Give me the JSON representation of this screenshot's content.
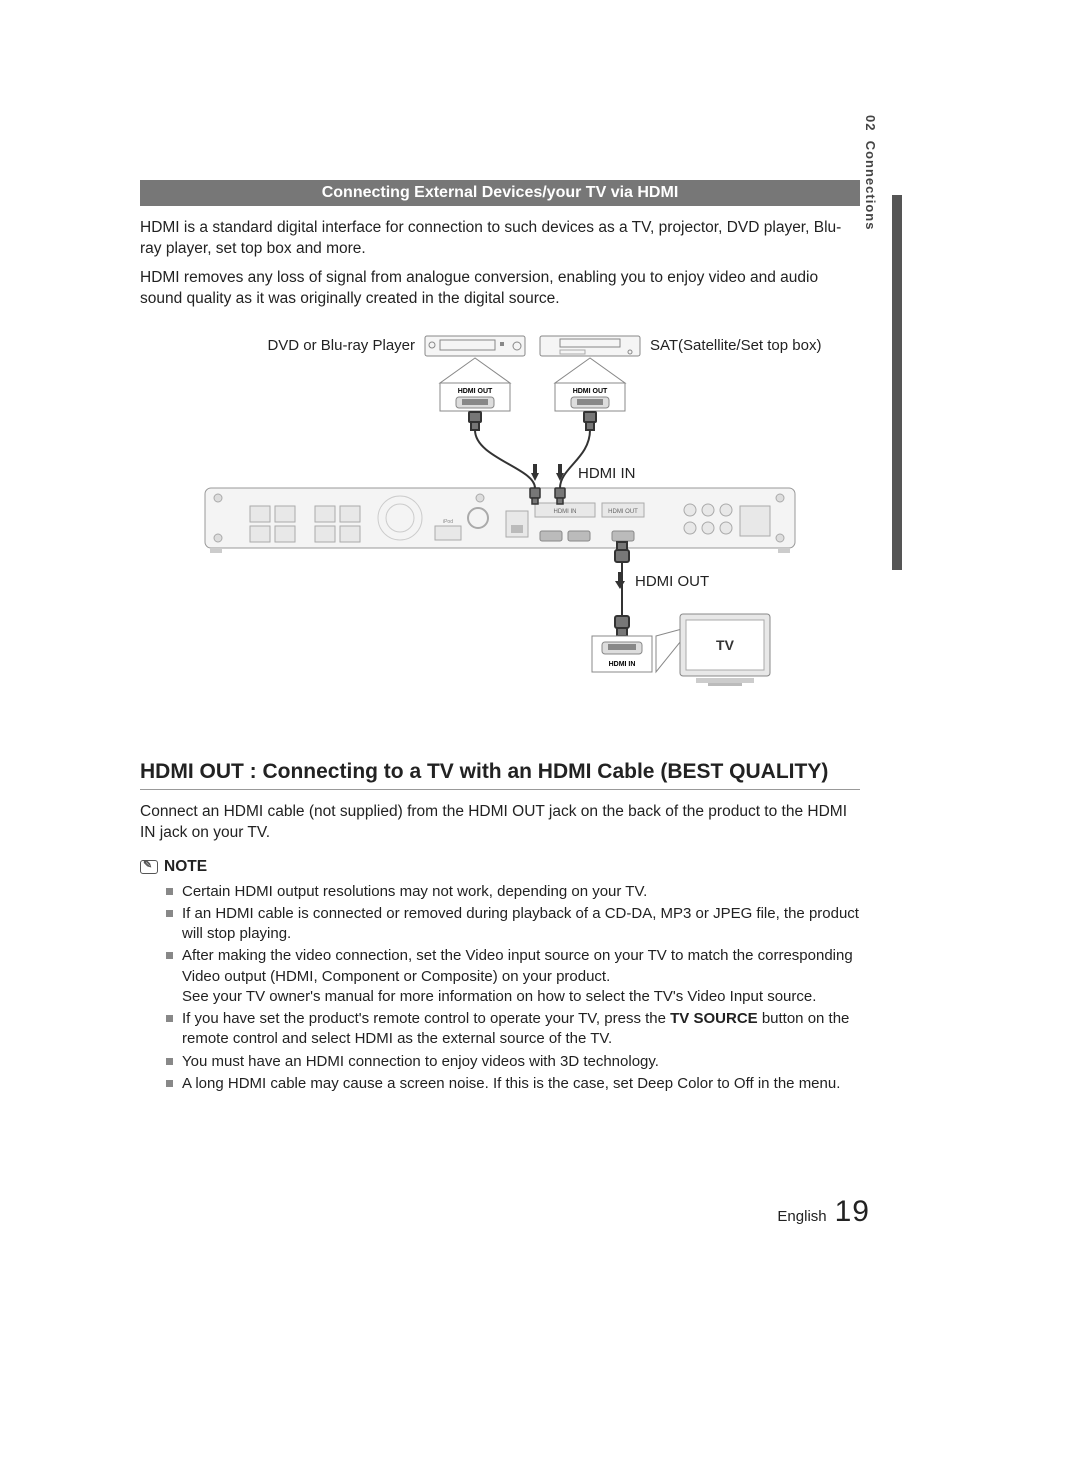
{
  "sidebar": {
    "chapter": "02",
    "title": "Connections"
  },
  "section": {
    "bar_title": "Connecting External Devices/your TV via HDMI"
  },
  "intro": {
    "p1": "HDMI is a standard digital interface for connection to such devices as a TV, projector, DVD player, Blu-ray player, set top box and more.",
    "p2": "HDMI removes any loss of signal from analogue conversion, enabling you to enjoy video and audio sound quality as it was originally created in the digital source."
  },
  "diagram": {
    "dvd_label": "DVD or Blu-ray Player",
    "sat_label": "SAT(Satellite/Set top box)",
    "hdmi_out_small": "HDMI OUT",
    "hdmi_in": "HDMI IN",
    "hdmi_out": "HDMI OUT",
    "hdmi_in_small": "HDMI  IN",
    "tv_label": "TV",
    "colors": {
      "stroke": "#888888",
      "fill_light": "#f0f0f0",
      "text": "#222222",
      "arrow": "#333333"
    }
  },
  "subsection": {
    "title": "HDMI OUT : Connecting to a TV with an HDMI Cable (BEST QUALITY)",
    "body": "Connect an HDMI cable (not supplied) from the HDMI OUT jack on the back of the product to the HDMI IN jack on your TV."
  },
  "note": {
    "heading": "NOTE",
    "items": [
      "Certain HDMI output resolutions may not work, depending on your TV.",
      "If an HDMI cable is connected or removed during playback of a CD-DA, MP3 or JPEG file, the product will stop playing.",
      "After making the video connection, set the Video input source on your TV to match the corresponding Video output (HDMI, Component or Composite) on your product.\nSee your TV owner's manual for more information on how to select the TV's Video Input source.",
      "If you have set the product's remote control to operate your TV, press the TV SOURCE button on the remote control and select HDMI as the external source of the TV.",
      "You must have an HDMI connection to enjoy videos with 3D technology.",
      "A long HDMI cable may cause a screen noise. If this is the case, set Deep Color to Off in the menu."
    ],
    "bold_in_item3": "TV SOURCE"
  },
  "footer": {
    "lang": "English",
    "page": "19"
  }
}
